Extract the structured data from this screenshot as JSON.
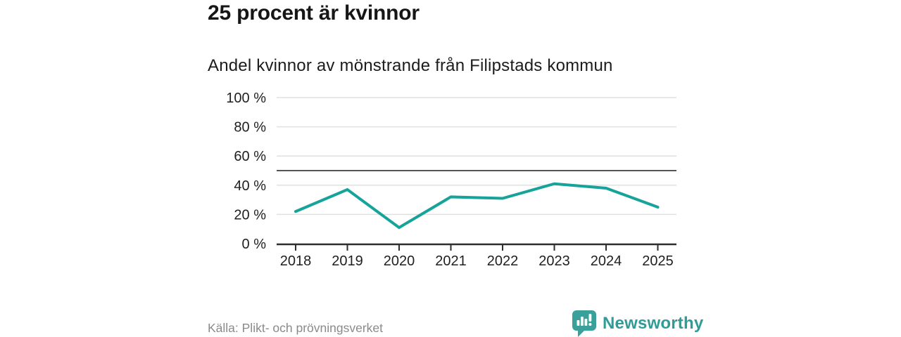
{
  "header": {
    "title": "25 procent är kvinnor",
    "subtitle": "Andel kvinnor av mönstrande från Filipstads kommun"
  },
  "chart_data": {
    "type": "line",
    "title": "25 procent är kvinnor",
    "subtitle": "Andel kvinnor av mönstrande från Filipstads kommun",
    "categories": [
      "2018",
      "2019",
      "2020",
      "2021",
      "2022",
      "2023",
      "2024",
      "2025"
    ],
    "series": [
      {
        "name": "Andel kvinnor av mönstrande",
        "values": [
          22,
          37,
          11,
          32,
          31,
          41,
          38,
          25
        ]
      }
    ],
    "unit": "%",
    "ylim": [
      0,
      100
    ],
    "yticks": [
      0,
      20,
      40,
      60,
      80,
      100
    ],
    "ytick_labels": [
      "0 %",
      "20 %",
      "40 %",
      "60 %",
      "80 %",
      "100 %"
    ],
    "reference_line": 50,
    "grid": true,
    "legend": "none",
    "colors": {
      "line": "#16a39a",
      "grid": "#e0e0e0",
      "reference": "#555555",
      "axis": "#2e2e2e",
      "tick_text": "#1f1f1f"
    }
  },
  "footer": {
    "source": "Källa: Plikt- och prövningsverket",
    "brand_name": "Newsworthy",
    "brand_color": "#2e9c97"
  },
  "icons": {
    "brand_logo": "speech-bubble-with-bar-chart-and-exclamation"
  }
}
